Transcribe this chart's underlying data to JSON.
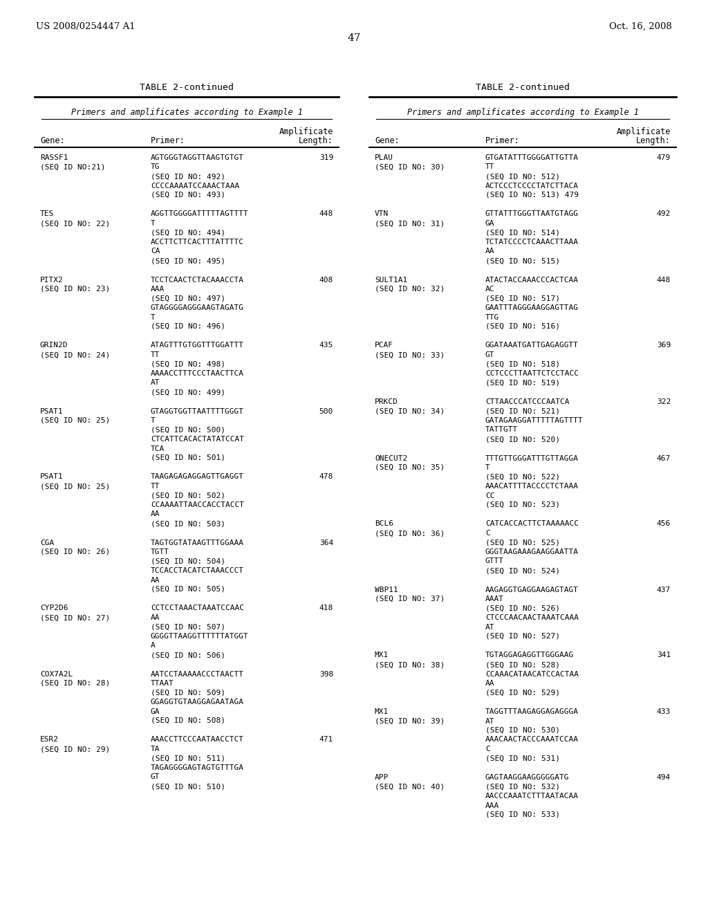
{
  "header_left": "US 2008/0254447 A1",
  "header_right": "Oct. 16, 2008",
  "page_number": "47",
  "table_title": "TABLE 2-continued",
  "table_subtitle": "Primers and amplificates according to Example 1",
  "left_table": [
    {
      "gene": "RASSF1",
      "seq_id": "(SEQ ID NO:21)",
      "primer_lines": [
        "AGTGGGTAGGTTAAGTGTGT",
        "TG",
        "(SEQ ID NO: 492)",
        "CCCCAAAATCCAAACTAAA",
        "(SEQ ID NO: 493)"
      ],
      "length": "319"
    },
    {
      "gene": "TES",
      "seq_id": "(SEQ ID NO: 22)",
      "primer_lines": [
        "AGGTTGGGGATTTTTAGTTTT",
        "T",
        "(SEQ ID NO: 494)",
        "ACCTTCTTCACTTTATTTTC",
        "CA",
        "(SEQ ID NO: 495)"
      ],
      "length": "448"
    },
    {
      "gene": "PITX2",
      "seq_id": "(SEQ ID NO: 23)",
      "primer_lines": [
        "TCCTCAACTCTACAAACCTA",
        "AAA",
        "(SEQ ID NO: 497)",
        "GTAGGGGAGGGAAGTAGATG",
        "T",
        "(SEQ ID NO: 496)"
      ],
      "length": "408"
    },
    {
      "gene": "GRIN2D",
      "seq_id": "(SEQ ID NO: 24)",
      "primer_lines": [
        "ATAGTTTGTGGTTTGGATTT",
        "TT",
        "(SEQ ID NO: 498)",
        "AAAACCTTTCCCTAACTTCA",
        "AT",
        "(SEQ ID NO: 499)"
      ],
      "length": "435"
    },
    {
      "gene": "PSAT1",
      "seq_id": "(SEQ ID NO: 25)",
      "primer_lines": [
        "GTAGGTGGTTAATTTTGGGT",
        "T",
        "(SEQ ID NO: 500)",
        "CTCATTCACACTATATCCAT",
        "TCA",
        "(SEQ ID NO: 501)"
      ],
      "length": "500"
    },
    {
      "gene": "PSAT1",
      "seq_id": "(SEQ ID NO: 25)",
      "primer_lines": [
        "TAAGAGAGAGGAGTTGAGGT",
        "TT",
        "(SEQ ID NO: 502)",
        "CCAAAATTAACCACCTACCT",
        "AA",
        "(SEQ ID NO: 503)"
      ],
      "length": "478"
    },
    {
      "gene": "CGA",
      "seq_id": "(SEQ ID NO: 26)",
      "primer_lines": [
        "TAGTGGTATAAGTTTGGAAA",
        "TGTT",
        "(SEQ ID NO: 504)",
        "TCCACCTACATCTAAACCCT",
        "AA",
        "(SEQ ID NO: 505)"
      ],
      "length": "364"
    },
    {
      "gene": "CYP2D6",
      "seq_id": "(SEQ ID NO: 27)",
      "primer_lines": [
        "CCTCCTAAACTAAATCCAAC",
        "AA",
        "(SEQ ID NO: 507)",
        "GGGGTTAAGGTTTTTTATGGT",
        "A",
        "(SEQ ID NO: 506)"
      ],
      "length": "418"
    },
    {
      "gene": "COX7A2L",
      "seq_id": "(SEQ ID NO: 28)",
      "primer_lines": [
        "AATCCTAAAAACCCTAACTT",
        "TTAAT",
        "(SEQ ID NO: 509)",
        "GGAGGTGTAAGGAGAATAGA",
        "GA",
        "(SEQ ID NO: 508)"
      ],
      "length": "398"
    },
    {
      "gene": "ESR2",
      "seq_id": "(SEQ ID NO: 29)",
      "primer_lines": [
        "AAACCTTCCCAATAACCTCT",
        "TA",
        "(SEQ ID NO: 511)",
        "TAGAGGGGAGTAGTGTTTGA",
        "GT",
        "(SEQ ID NO: 510)"
      ],
      "length": "471"
    }
  ],
  "right_table": [
    {
      "gene": "PLAU",
      "seq_id": "(SEQ ID NO: 30)",
      "primer_lines": [
        "GTGATATTTGGGGATTGTTA",
        "TT",
        "(SEQ ID NO: 512)",
        "ACTCCCTCCCCTATCTTACA",
        "(SEQ ID NO: 513) 479"
      ],
      "length": "479"
    },
    {
      "gene": "VTN",
      "seq_id": "(SEQ ID NO: 31)",
      "primer_lines": [
        "GTTATTTGGGTTAATGTAGG",
        "GA",
        "(SEQ ID NO: 514)",
        "TCTATCCCCTCAAACTTAAA",
        "AA",
        "(SEQ ID NO: 515)"
      ],
      "length": "492"
    },
    {
      "gene": "SULT1A1",
      "seq_id": "(SEQ ID NO: 32)",
      "primer_lines": [
        "ATACTACCAAACCCACTCAA",
        "AC",
        "(SEQ ID NO: 517)",
        "GAATTTAGGGAAGGAGTTAG",
        "TTG",
        "(SEQ ID NO: 516)"
      ],
      "length": "448"
    },
    {
      "gene": "PCAF",
      "seq_id": "(SEQ ID NO: 33)",
      "primer_lines": [
        "GGATAAATGATTGAGAGGTT",
        "GT",
        "(SEQ ID NO: 518)",
        "CCTCCCTTAATTCTCCTACC",
        "(SEQ ID NO: 519)"
      ],
      "length": "369"
    },
    {
      "gene": "PRKCD",
      "seq_id": "(SEQ ID NO: 34)",
      "primer_lines": [
        "CTTAACCCATCCCAATCA",
        "(SEQ ID NO: 521)",
        "GATAGAAGGATTTTTAGTTTT",
        "TATTGTT",
        "(SEQ ID NO: 520)"
      ],
      "length": "322"
    },
    {
      "gene": "ONECUT2",
      "seq_id": "(SEQ ID NO: 35)",
      "primer_lines": [
        "TTTGTTGGGATTTGTTAGGA",
        "T",
        "(SEQ ID NO: 522)",
        "AAACATTTTACCCCTCTAAA",
        "CC",
        "(SEQ ID NO: 523)"
      ],
      "length": "467"
    },
    {
      "gene": "BCL6",
      "seq_id": "(SEQ ID NO: 36)",
      "primer_lines": [
        "CATCACCACTTCTAAAAACC",
        "C",
        "(SEQ ID NO: 525)",
        "GGGTAAGAAAGAAGGAATTA",
        "GTTT",
        "(SEQ ID NO: 524)"
      ],
      "length": "456"
    },
    {
      "gene": "WBP11",
      "seq_id": "(SEQ ID NO: 37)",
      "primer_lines": [
        "AAGAGGTGAGGAAGAGTAGT",
        "AAAT",
        "(SEQ ID NO: 526)",
        "CTCCCAACAACTAAATCAAA",
        "AT",
        "(SEQ ID NO: 527)"
      ],
      "length": "437"
    },
    {
      "gene": "MX1",
      "seq_id": "(SEQ ID NO: 38)",
      "primer_lines": [
        "TGTAGGAGAGGTTGGGAAG",
        "(SEQ ID NO: 528)",
        "CCAAACATAACATCCACTAA",
        "AA",
        "(SEQ ID NO: 529)"
      ],
      "length": "341"
    },
    {
      "gene": "MX1",
      "seq_id": "(SEQ ID NO: 39)",
      "primer_lines": [
        "TAGGTTTAAGAGGAGAGGGA",
        "AT",
        "(SEQ ID NO: 530)",
        "AAACAACTACCCAAATCCAA",
        "C",
        "(SEQ ID NO: 531)"
      ],
      "length": "433"
    },
    {
      "gene": "APP",
      "seq_id": "(SEQ ID NO: 40)",
      "primer_lines": [
        "GAGTAAGGAAGGGGGATG",
        "(SEQ ID NO: 532)",
        "AACCCAAATCTTTAATACAA",
        "AAA",
        "(SEQ ID NO: 533)"
      ],
      "length": "494"
    }
  ],
  "bg_color": "#ffffff",
  "text_color": "#000000"
}
